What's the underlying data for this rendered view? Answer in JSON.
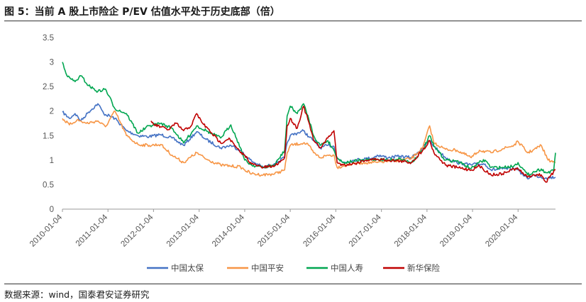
{
  "figure": {
    "title": "图 5：当前 A 股上市险企 P/EV 估值水平处于历史底部（倍）",
    "source": "数据来源：wind，国泰君安证券研究"
  },
  "chart_data": {
    "type": "line",
    "y_ticks": [
      "0",
      "0.5",
      "1",
      "1.5",
      "2",
      "2.5",
      "3",
      "3.5"
    ],
    "ylim": [
      0,
      3.5
    ],
    "x_ticks": [
      "2010-01-04",
      "2011-01-04",
      "2012-01-04",
      "2013-01-04",
      "2014-01-04",
      "2015-01-04",
      "2016-01-04",
      "2017-01-04",
      "2018-01-04",
      "2019-01-04",
      "2020-01-04"
    ],
    "x_range": [
      "2010-01-04",
      "2020-10-30"
    ],
    "grid": false,
    "legend_position": "bottom",
    "series": [
      {
        "name": "中国太保",
        "color": "#4472C4",
        "x": [
          "2010-01-04",
          "2010-03-01",
          "2010-04-15",
          "2010-06-01",
          "2010-08-01",
          "2010-10-15",
          "2010-12-01",
          "2011-03-01",
          "2011-06-01",
          "2011-09-01",
          "2011-12-01",
          "2012-03-01",
          "2012-06-01",
          "2012-09-01",
          "2012-12-15",
          "2013-03-01",
          "2013-06-25",
          "2013-09-15",
          "2013-12-01",
          "2014-01-04",
          "2014-03-01",
          "2014-06-01",
          "2014-09-01",
          "2014-11-20",
          "2014-12-10",
          "2015-01-04",
          "2015-03-01",
          "2015-04-20",
          "2015-06-01",
          "2015-07-10",
          "2015-09-01",
          "2015-11-01",
          "2015-12-20",
          "2016-01-15",
          "2016-03-01",
          "2016-06-01",
          "2016-09-01",
          "2016-11-01",
          "2016-12-01",
          "2017-03-01",
          "2017-06-01",
          "2017-09-01",
          "2017-12-01",
          "2018-01-25",
          "2018-03-01",
          "2018-06-01",
          "2018-09-01",
          "2018-12-25",
          "2019-02-01",
          "2019-04-15",
          "2019-06-01",
          "2019-09-01",
          "2019-12-01",
          "2020-01-04",
          "2020-02-01",
          "2020-03-20",
          "2020-05-01",
          "2020-07-08",
          "2020-08-15",
          "2020-10-30"
        ],
        "values": [
          1.98,
          1.85,
          1.95,
          1.8,
          1.98,
          2.15,
          1.95,
          1.85,
          1.6,
          1.5,
          1.48,
          1.52,
          1.45,
          1.3,
          1.58,
          1.42,
          1.25,
          1.3,
          1.2,
          1.1,
          0.98,
          0.85,
          0.93,
          1.05,
          1.35,
          1.5,
          1.55,
          1.6,
          1.48,
          1.4,
          1.25,
          1.3,
          1.28,
          1.05,
          0.95,
          1.0,
          1.03,
          1.05,
          1.1,
          1.05,
          1.08,
          1.05,
          1.25,
          1.4,
          1.28,
          1.05,
          0.95,
          0.9,
          0.92,
          0.92,
          0.8,
          0.82,
          0.82,
          0.83,
          0.72,
          0.62,
          0.7,
          0.65,
          0.64,
          0.65
        ]
      },
      {
        "name": "中国平安",
        "color": "#F79646",
        "x": [
          "2010-01-04",
          "2010-03-01",
          "2010-05-01",
          "2010-07-15",
          "2010-10-15",
          "2010-12-15",
          "2011-03-01",
          "2011-06-01",
          "2011-09-01",
          "2011-12-01",
          "2012-03-01",
          "2012-06-01",
          "2012-09-01",
          "2012-12-15",
          "2013-03-01",
          "2013-06-25",
          "2013-09-15",
          "2013-12-01",
          "2014-01-04",
          "2014-03-01",
          "2014-06-01",
          "2014-09-01",
          "2014-11-20",
          "2014-12-10",
          "2015-01-04",
          "2015-04-20",
          "2015-06-01",
          "2015-07-10",
          "2015-09-01",
          "2015-11-01",
          "2015-12-20",
          "2016-01-15",
          "2016-03-01",
          "2016-06-01",
          "2016-09-01",
          "2016-12-01",
          "2017-03-01",
          "2017-06-01",
          "2017-09-01",
          "2017-12-01",
          "2018-01-25",
          "2018-03-01",
          "2018-06-01",
          "2018-09-01",
          "2018-12-25",
          "2019-03-01",
          "2019-06-01",
          "2019-09-01",
          "2019-12-01",
          "2020-01-04",
          "2020-03-20",
          "2020-05-01",
          "2020-07-08",
          "2020-09-01",
          "2020-10-30"
        ],
        "values": [
          1.85,
          1.72,
          1.82,
          1.75,
          1.8,
          1.68,
          2.0,
          1.5,
          1.32,
          1.3,
          1.32,
          1.1,
          0.95,
          1.15,
          1.02,
          0.9,
          0.88,
          0.86,
          0.8,
          0.72,
          0.7,
          0.72,
          0.8,
          1.15,
          1.3,
          1.35,
          1.3,
          1.15,
          1.05,
          1.1,
          1.1,
          0.85,
          0.88,
          0.93,
          0.95,
          0.95,
          0.98,
          1.0,
          1.03,
          1.25,
          1.7,
          1.35,
          1.22,
          1.2,
          1.05,
          1.2,
          1.15,
          1.23,
          1.3,
          1.38,
          1.15,
          1.2,
          1.3,
          1.0,
          0.95
        ]
      },
      {
        "name": "中国人寿",
        "color": "#00A650",
        "x": [
          "2010-01-04",
          "2010-02-15",
          "2010-04-15",
          "2010-06-01",
          "2010-08-01",
          "2010-10-15",
          "2010-12-15",
          "2011-03-01",
          "2011-06-01",
          "2011-09-01",
          "2011-12-01",
          "2012-03-01",
          "2012-06-01",
          "2012-09-01",
          "2012-12-15",
          "2013-03-01",
          "2013-06-25",
          "2013-09-15",
          "2013-12-01",
          "2014-01-04",
          "2014-03-01",
          "2014-06-01",
          "2014-09-01",
          "2014-11-20",
          "2014-12-10",
          "2015-01-04",
          "2015-03-01",
          "2015-04-20",
          "2015-06-01",
          "2015-07-10",
          "2015-09-01",
          "2015-11-01",
          "2015-12-20",
          "2016-01-15",
          "2016-03-01",
          "2016-06-01",
          "2016-09-01",
          "2016-12-01",
          "2017-03-01",
          "2017-06-01",
          "2017-09-01",
          "2017-12-01",
          "2018-01-25",
          "2018-03-01",
          "2018-06-01",
          "2018-09-01",
          "2018-12-25",
          "2019-02-25",
          "2019-04-15",
          "2019-06-01",
          "2019-09-01",
          "2019-12-01",
          "2020-01-04",
          "2020-02-01",
          "2020-03-20",
          "2020-05-01",
          "2020-07-08",
          "2020-08-15",
          "2020-10-15",
          "2020-10-30"
        ],
        "values": [
          3.0,
          2.7,
          2.6,
          2.72,
          2.52,
          2.4,
          2.45,
          2.05,
          1.95,
          1.55,
          1.7,
          1.75,
          1.65,
          1.35,
          1.7,
          1.6,
          1.45,
          1.72,
          1.25,
          1.0,
          0.9,
          0.85,
          0.9,
          1.2,
          1.9,
          2.1,
          1.95,
          2.15,
          1.85,
          1.5,
          1.3,
          1.4,
          1.2,
          1.05,
          0.95,
          0.98,
          1.0,
          1.02,
          1.0,
          1.03,
          0.95,
          1.2,
          1.5,
          1.28,
          1.0,
          0.98,
          0.83,
          0.95,
          1.0,
          0.85,
          0.85,
          0.88,
          0.95,
          0.85,
          0.7,
          0.75,
          0.82,
          0.74,
          0.78,
          1.15
        ]
      },
      {
        "name": "新华保险",
        "color": "#C00000",
        "x": [
          "2011-12-15",
          "2012-01-10",
          "2012-03-01",
          "2012-05-01",
          "2012-07-01",
          "2012-09-01",
          "2012-11-01",
          "2012-12-15",
          "2013-02-01",
          "2013-04-15",
          "2013-06-25",
          "2013-09-01",
          "2013-10-15",
          "2013-12-01",
          "2014-01-04",
          "2014-03-01",
          "2014-06-01",
          "2014-09-01",
          "2014-11-20",
          "2014-12-10",
          "2015-01-04",
          "2015-03-01",
          "2015-04-20",
          "2015-06-01",
          "2015-07-10",
          "2015-09-01",
          "2015-11-01",
          "2015-12-20",
          "2016-01-15",
          "2016-03-01",
          "2016-06-01",
          "2016-09-01",
          "2016-12-01",
          "2017-03-01",
          "2017-06-01",
          "2017-09-01",
          "2017-12-01",
          "2018-01-25",
          "2018-03-01",
          "2018-06-01",
          "2018-09-01",
          "2018-12-25",
          "2019-03-01",
          "2019-06-01",
          "2019-09-01",
          "2019-12-01",
          "2020-01-04",
          "2020-03-20",
          "2020-05-01",
          "2020-07-08",
          "2020-08-15",
          "2020-10-30"
        ],
        "values": [
          1.8,
          1.72,
          1.68,
          1.62,
          1.75,
          1.6,
          1.7,
          1.95,
          1.75,
          1.55,
          1.35,
          1.45,
          1.3,
          1.15,
          1.1,
          0.92,
          0.85,
          0.88,
          1.05,
          1.7,
          1.85,
          1.65,
          2.1,
          1.78,
          1.4,
          1.25,
          1.45,
          1.6,
          0.95,
          0.9,
          0.93,
          1.0,
          1.02,
          1.0,
          0.98,
          0.95,
          1.2,
          1.4,
          1.15,
          0.9,
          0.85,
          0.8,
          0.88,
          0.7,
          0.72,
          0.82,
          0.82,
          0.65,
          0.7,
          0.7,
          0.55,
          0.8
        ]
      }
    ]
  }
}
